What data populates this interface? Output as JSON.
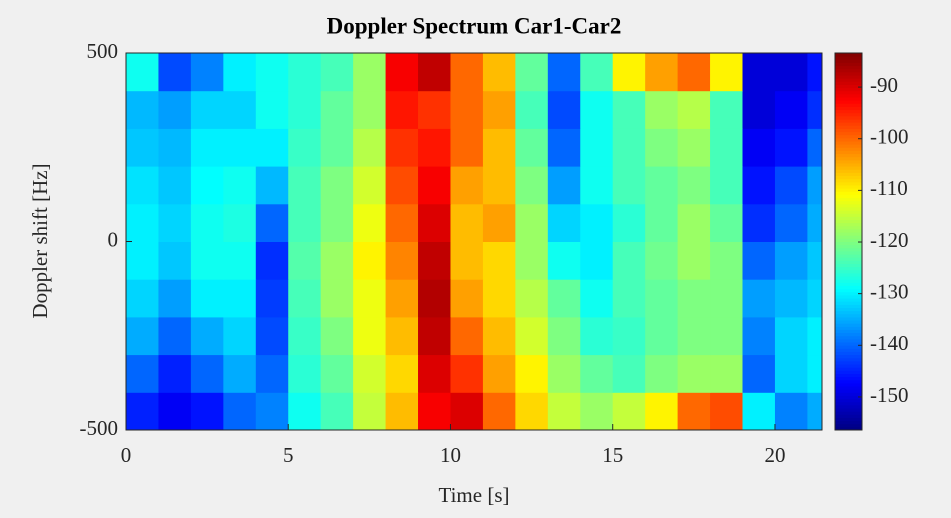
{
  "chart_data": {
    "type": "heatmap",
    "title": "Doppler Spectrum Car1-Car2",
    "xlabel": "Time [s]",
    "ylabel": "Doppler shift [Hz]",
    "colormap": "jet",
    "xlim": [
      0,
      21.45
    ],
    "xticks": [
      0,
      5,
      10,
      15,
      20
    ],
    "ylim": [
      -500,
      500
    ],
    "yticks": [
      -500,
      0,
      500
    ],
    "clim": [
      -156.4,
      -83.4
    ],
    "cticks": [
      -150,
      -140,
      -130,
      -120,
      -110,
      -100,
      -90
    ],
    "xbins": [
      0,
      1,
      2,
      3,
      4,
      5,
      6,
      7,
      8,
      9,
      10,
      11,
      12,
      13,
      14,
      15,
      16,
      17,
      18,
      19,
      20,
      21,
      21.45
    ],
    "ybins": [
      -500,
      -400,
      -300,
      -200,
      -100,
      0,
      100,
      200,
      300,
      400,
      500
    ],
    "z": [
      [
        -145,
        -148,
        -146,
        -140,
        -138,
        -128,
        -124,
        -115,
        -106,
        -92,
        -90,
        -100,
        -108,
        -115,
        -118,
        -115,
        -110,
        -100,
        -98,
        -130,
        -138,
        -135
      ],
      [
        -140,
        -145,
        -140,
        -135,
        -140,
        -126,
        -122,
        -114,
        -108,
        -90,
        -96,
        -104,
        -110,
        -118,
        -122,
        -124,
        -120,
        -118,
        -118,
        -140,
        -132,
        -130
      ],
      [
        -135,
        -140,
        -135,
        -132,
        -142,
        -125,
        -120,
        -112,
        -106,
        -88,
        -100,
        -106,
        -114,
        -120,
        -126,
        -125,
        -122,
        -120,
        -120,
        -138,
        -132,
        -130
      ],
      [
        -132,
        -136,
        -130,
        -130,
        -143,
        -124,
        -118,
        -112,
        -104,
        -87,
        -104,
        -108,
        -116,
        -122,
        -128,
        -124,
        -122,
        -120,
        -120,
        -136,
        -134,
        -132
      ],
      [
        -130,
        -133,
        -128,
        -128,
        -144,
        -123,
        -118,
        -110,
        -102,
        -88,
        -106,
        -108,
        -118,
        -128,
        -130,
        -124,
        -121,
        -118,
        -120,
        -140,
        -136,
        -133
      ],
      [
        -130,
        -132,
        -128,
        -127,
        -140,
        -124,
        -120,
        -112,
        -100,
        -90,
        -106,
        -104,
        -118,
        -132,
        -130,
        -126,
        -122,
        -118,
        -122,
        -144,
        -140,
        -135
      ],
      [
        -131,
        -133,
        -129,
        -128,
        -134,
        -124,
        -120,
        -114,
        -98,
        -92,
        -104,
        -106,
        -120,
        -136,
        -128,
        -124,
        -122,
        -120,
        -124,
        -146,
        -142,
        -136
      ],
      [
        -133,
        -134,
        -130,
        -130,
        -130,
        -125,
        -122,
        -116,
        -96,
        -94,
        -100,
        -106,
        -122,
        -140,
        -128,
        -124,
        -120,
        -118,
        -124,
        -148,
        -146,
        -140
      ],
      [
        -134,
        -136,
        -132,
        -132,
        -128,
        -126,
        -122,
        -118,
        -94,
        -96,
        -100,
        -104,
        -124,
        -142,
        -128,
        -124,
        -118,
        -116,
        -124,
        -150,
        -148,
        -144
      ],
      [
        -128,
        -142,
        -138,
        -130,
        -128,
        -126,
        -124,
        -118,
        -92,
        -88,
        -100,
        -106,
        -122,
        -140,
        -124,
        -110,
        -104,
        -100,
        -110,
        -150,
        -150,
        -146
      ]
    ]
  }
}
